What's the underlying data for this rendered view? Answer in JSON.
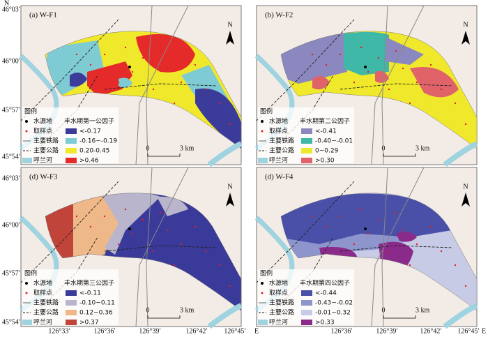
{
  "axes": {
    "north": "N",
    "latitude_labels_top": [
      "46°03′",
      "46°00′",
      "45°57′",
      "45°54′"
    ],
    "latitude_labels_bottom": [
      "46°03′",
      "46°00′",
      "45°57′",
      "45°54′"
    ],
    "longitude_labels_left": [
      "126°33′",
      "126°36′",
      "126°39′",
      "126°42′",
      "126°45′"
    ],
    "longitude_labels_right": [
      "E",
      "126°36′",
      "126°39′",
      "126°42′",
      "126°45′",
      "E"
    ]
  },
  "panels": [
    {
      "title": "(a) W-F1",
      "north": "N",
      "scale": {
        "start": "0",
        "end": "3 km"
      },
      "legend": {
        "heading": "图例",
        "items": [
          "水源地",
          "取样点",
          "主要铁路",
          "主要公路",
          "呼兰河"
        ],
        "factor": "丰水期第一公因子",
        "classes": [
          {
            "label": "<-0.17",
            "color": "#3b3b9a"
          },
          {
            "label": "-0.16~-0.19",
            "color": "#7fcbd4"
          },
          {
            "label": "0.20-0.45",
            "color": "#f0e82a"
          },
          {
            "label": ">0.46",
            "color": "#e52a2a"
          }
        ]
      }
    },
    {
      "title": "(b) W-F2",
      "north": "N",
      "scale": {
        "start": "0",
        "end": "3 km"
      },
      "legend": {
        "heading": "图例",
        "items": [
          "水源地",
          "取样点",
          "主要铁路",
          "主要公路",
          "呼兰河"
        ],
        "factor": "丰水期第二公因子",
        "classes": [
          {
            "label": "<-0.41",
            "color": "#8b88c0"
          },
          {
            "label": "-0.40~-0.01",
            "color": "#3fb8a8"
          },
          {
            "label": "0~0.29",
            "color": "#f0e82a"
          },
          {
            "label": ">0.30",
            "color": "#e0636a"
          }
        ]
      }
    },
    {
      "title": "(d) W-F3",
      "north": "N",
      "scale": {
        "start": "0",
        "end": "3 km"
      },
      "legend": {
        "heading": "图例",
        "items": [
          "水源地",
          "取样点",
          "主要铁路",
          "主要公路",
          "呼兰河"
        ],
        "factor": "丰水期第三公因子",
        "classes": [
          {
            "label": "<-0.11",
            "color": "#3a3a9a"
          },
          {
            "label": "-0.10~0.11",
            "color": "#b9b5cc"
          },
          {
            "label": "0.12~0.36",
            "color": "#efb888"
          },
          {
            "label": ">0.37",
            "color": "#c0443a"
          }
        ]
      }
    },
    {
      "title": "(d) W-F4",
      "north": "N",
      "scale": {
        "start": "0",
        "end": "3 km"
      },
      "legend": {
        "heading": "图例",
        "items": [
          "水源地",
          "取样点",
          "主要铁路",
          "主要公路",
          "呼兰河"
        ],
        "factor": "丰水期第四公因子",
        "classes": [
          {
            "label": "<-0.44",
            "color": "#4a50a8"
          },
          {
            "label": "-0.43~-0.02",
            "color": "#8d95cc"
          },
          {
            "label": "-0.01~0.32",
            "color": "#c8cbe6"
          },
          {
            "label": ">0.33",
            "color": "#8a2a8a"
          }
        ]
      }
    }
  ]
}
